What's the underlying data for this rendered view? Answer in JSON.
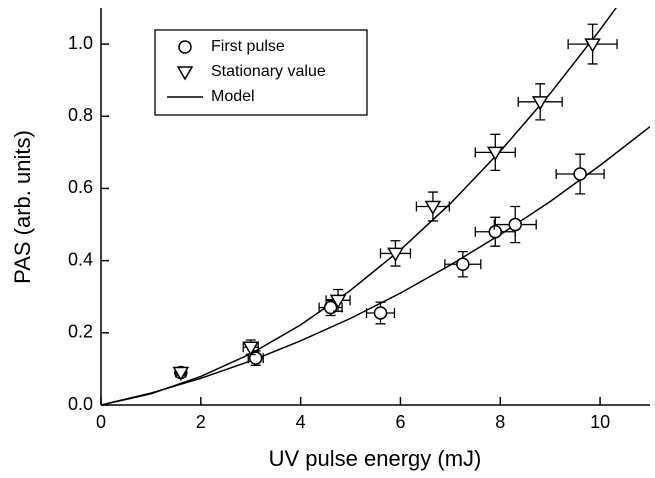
{
  "chart_data": {
    "type": "scatter",
    "x_label": "UV pulse energy (mJ)",
    "y_label": "PAS (arb. units)",
    "xlim": [
      0,
      11
    ],
    "ylim": [
      0,
      1.1
    ],
    "xticks": [
      0,
      2,
      4,
      6,
      8,
      10
    ],
    "yticks": [
      {
        "value": 0,
        "label": "0.0"
      },
      0.2,
      0.4,
      0.6,
      0.8,
      {
        "value": 1,
        "label": "1.0"
      }
    ],
    "color": "#000000",
    "series": [
      {
        "name": "First pulse",
        "marker": "circle",
        "x": [
          1.6,
          3.1,
          4.6,
          5.6,
          7.25,
          7.9,
          8.3,
          9.6
        ],
        "values": [
          0.09,
          0.13,
          0.27,
          0.255,
          0.39,
          0.48,
          0.5,
          0.64
        ],
        "x_errors": [
          0.1,
          0.15,
          0.23,
          0.28,
          0.36,
          0.4,
          0.42,
          0.48
        ],
        "errors": [
          0.007,
          0.02,
          0.022,
          0.03,
          0.035,
          0.04,
          0.05,
          0.055
        ]
      },
      {
        "name": "Stationary value",
        "marker": "triangle",
        "x": [
          1.6,
          3.0,
          4.75,
          5.9,
          6.65,
          7.9,
          8.8,
          9.85
        ],
        "values": [
          0.09,
          0.16,
          0.29,
          0.42,
          0.55,
          0.7,
          0.84,
          1.0
        ],
        "x_errors": [
          0.1,
          0.15,
          0.24,
          0.3,
          0.33,
          0.4,
          0.44,
          0.49
        ],
        "errors": [
          0.007,
          0.02,
          0.03,
          0.035,
          0.04,
          0.05,
          0.05,
          0.055
        ]
      }
    ],
    "model": {
      "name": "Model",
      "curves": [
        {
          "x": [
            0,
            1,
            2,
            3,
            4,
            5,
            6,
            7,
            8,
            9,
            10,
            11
          ],
          "values": [
            0,
            0.033,
            0.074,
            0.122,
            0.178,
            0.24,
            0.31,
            0.388,
            0.472,
            0.564,
            0.664,
            0.771
          ]
        },
        {
          "x": [
            0,
            1,
            2,
            3,
            4,
            5,
            6,
            7,
            8,
            9,
            10,
            10.35
          ],
          "values": [
            0,
            0.031,
            0.079,
            0.142,
            0.222,
            0.318,
            0.43,
            0.558,
            0.703,
            0.863,
            1.04,
            1.106
          ]
        }
      ]
    },
    "legend": "upper left"
  }
}
